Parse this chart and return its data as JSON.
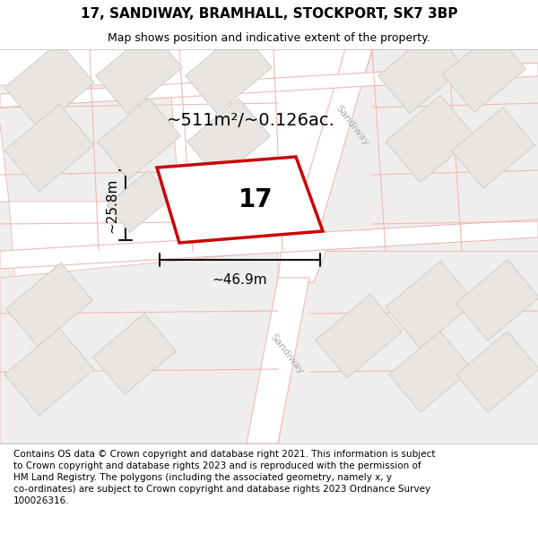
{
  "title": "17, SANDIWAY, BRAMHALL, STOCKPORT, SK7 3BP",
  "subtitle": "Map shows position and indicative extent of the property.",
  "footer": "Contains OS data © Crown copyright and database right 2021. This information is subject to Crown copyright and database rights 2023 and is reproduced with the permission of HM Land Registry. The polygons (including the associated geometry, namely x, y co-ordinates) are subject to Crown copyright and database rights 2023 Ordnance Survey 100026316.",
  "area_label": "~511m²/~0.126ac.",
  "width_label": "~46.9m",
  "height_label": "~25.8m",
  "property_number": "17",
  "map_bg_color": "#f7f5f3",
  "road_fill_color": "#ffffff",
  "road_edge_color": "#f0b8b8",
  "building_fill_color": "#e8e5e2",
  "building_edge_color": "#d0ccc8",
  "block_fill_color": "#f0eeed",
  "block_edge_color": "#e8b8b8",
  "property_fill_color": "#ffffff",
  "property_edge_color": "#cc0000",
  "dim_color": "#111111",
  "road_label_color": "#aaaaaa",
  "title_fontsize": 11,
  "subtitle_fontsize": 9,
  "footer_fontsize": 7.5,
  "area_fontsize": 14,
  "number_fontsize": 20,
  "dim_fontsize": 11,
  "road_label_fontsize": 8
}
